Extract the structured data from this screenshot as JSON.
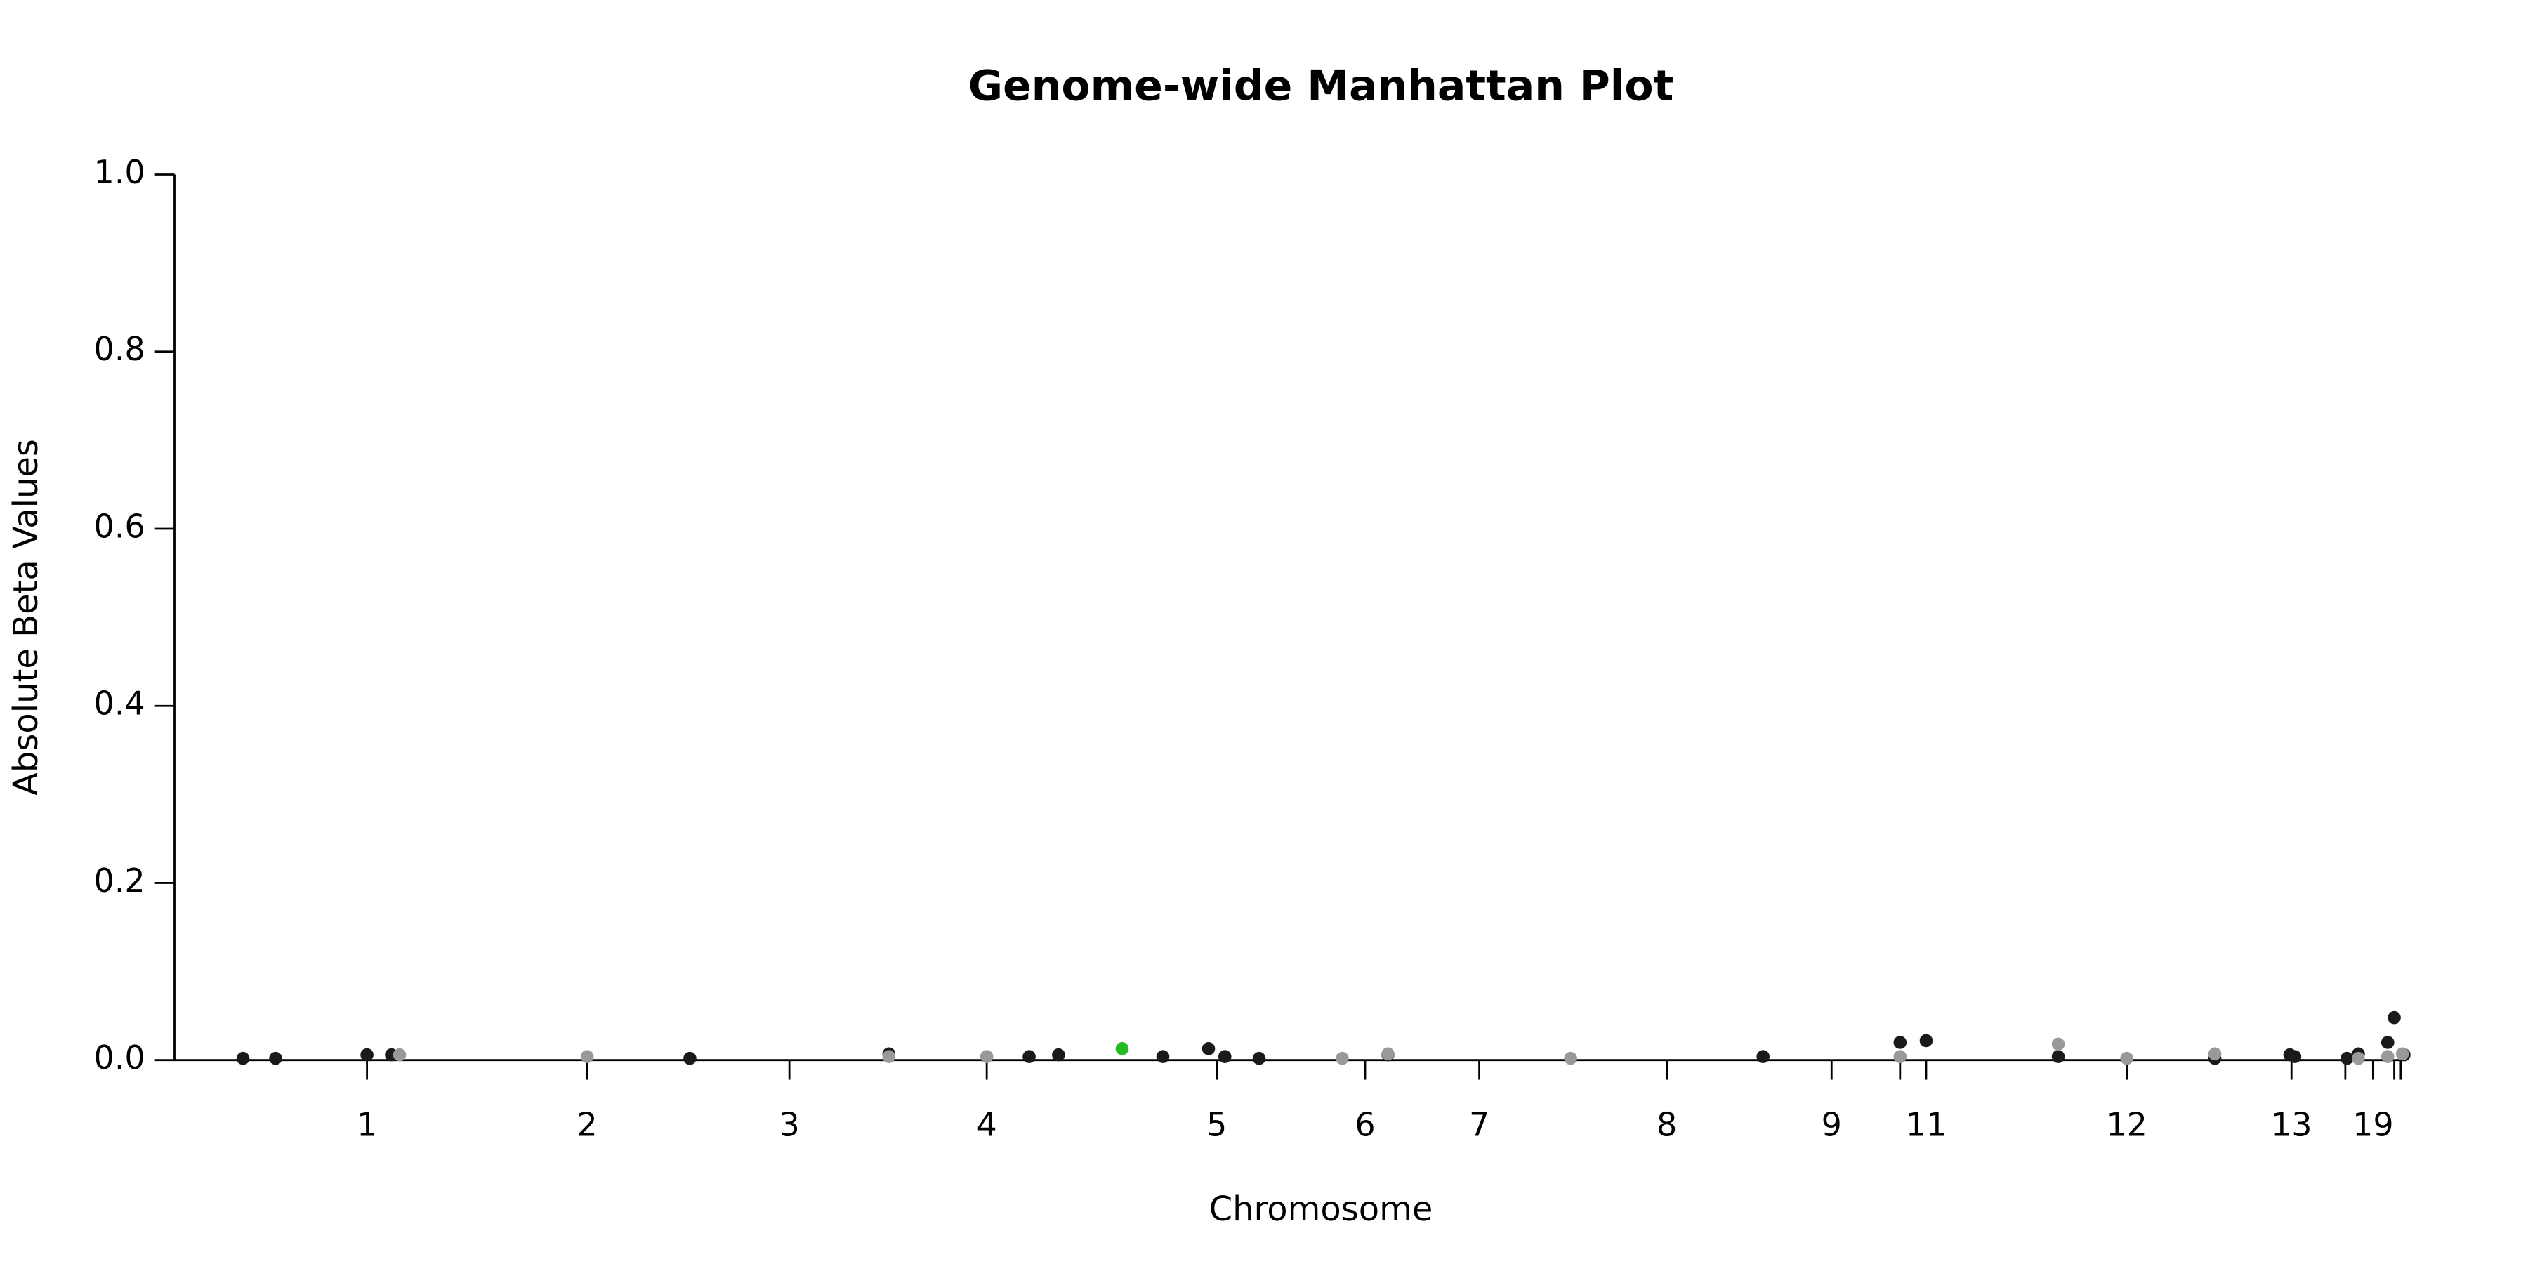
{
  "chart_data": {
    "type": "scatter",
    "title": "Genome-wide Manhattan Plot",
    "x_label": "Chromosome",
    "y_label": "Absolute Beta Values",
    "xlim": [
      0,
      1400
    ],
    "ylim": [
      0,
      1
    ],
    "yticks": [
      {
        "value": 0,
        "label": "0.0"
      },
      {
        "value": 0.2,
        "label": "0.2"
      },
      {
        "value": 0.4,
        "label": "0.4"
      },
      {
        "value": 0.6,
        "label": "0.6"
      },
      {
        "value": 0.8,
        "label": "0.8"
      },
      {
        "value": 1,
        "label": "1.0"
      }
    ],
    "xticks": [
      {
        "value": 118,
        "label": "1"
      },
      {
        "value": 253,
        "label": "2"
      },
      {
        "value": 377,
        "label": "3"
      },
      {
        "value": 498,
        "label": "4"
      },
      {
        "value": 639,
        "label": "5"
      },
      {
        "value": 730,
        "label": "6"
      },
      {
        "value": 800,
        "label": "7"
      },
      {
        "value": 915,
        "label": "8"
      },
      {
        "value": 1016,
        "label": "9"
      },
      {
        "value": 1058,
        "label": null
      },
      {
        "value": 1074,
        "label": "11"
      },
      {
        "value": 1197,
        "label": "12"
      },
      {
        "value": 1298,
        "label": "13"
      },
      {
        "value": 1331,
        "label": null
      },
      {
        "value": 1348,
        "label": "19"
      },
      {
        "value": 1361,
        "label": null
      },
      {
        "value": 1365,
        "label": null
      }
    ],
    "series": [
      {
        "color": "#1a1a1a",
        "x": [
          42,
          62,
          118,
          133,
          316,
          438,
          524,
          542,
          606,
          634,
          644,
          665,
          744,
          974,
          1058,
          1074,
          1155,
          1251,
          1297,
          1300,
          1332,
          1339,
          1357,
          1361,
          1367
        ],
        "values": [
          0.002,
          0.002,
          0.006,
          0.006,
          0.002,
          0.007,
          0.004,
          0.006,
          0.004,
          0.013,
          0.004,
          0.002,
          0.006,
          0.004,
          0.02,
          0.022,
          0.004,
          0.002,
          0.006,
          0.004,
          0.002,
          0.007,
          0.02,
          0.048,
          0.006
        ]
      },
      {
        "color": "#999999",
        "x": [
          138,
          253,
          438,
          498,
          716,
          744,
          856,
          1058,
          1155,
          1197,
          1251,
          1339,
          1357,
          1366
        ],
        "values": [
          0.006,
          0.004,
          0.004,
          0.004,
          0.002,
          0.007,
          0.002,
          0.004,
          0.018,
          0.002,
          0.007,
          0.002,
          0.004,
          0.007
        ]
      },
      {
        "color": "#22bb22",
        "x": [
          581
        ],
        "values": [
          0.013
        ]
      }
    ]
  }
}
